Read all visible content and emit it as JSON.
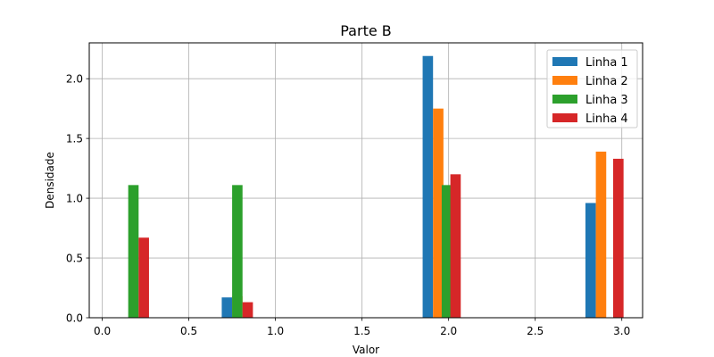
{
  "chart_data": {
    "type": "bar",
    "title": "Parte B",
    "xlabel": "Valor",
    "ylabel": "Densidade",
    "xlim": [
      -0.075,
      3.12
    ],
    "ylim": [
      0,
      2.3
    ],
    "xticks": [
      0.0,
      0.5,
      1.0,
      1.5,
      2.0,
      2.5,
      3.0
    ],
    "xtick_labels": [
      "0.0",
      "0.5",
      "1.0",
      "1.5",
      "2.0",
      "2.5",
      "3.0"
    ],
    "yticks": [
      0.0,
      0.5,
      1.0,
      1.5,
      2.0
    ],
    "ytick_labels": [
      "0.0",
      "0.5",
      "1.0",
      "1.5",
      "2.0"
    ],
    "grid": true,
    "legend_position": "top-right",
    "bin_centers": [
      0.2,
      0.8,
      1.4,
      2.0,
      2.6,
      3.0
    ],
    "series": [
      {
        "name": "Linha 1",
        "color": "#1f77b4",
        "x": [
          0.72,
          1.88,
          2.82
        ],
        "values": [
          0.17,
          2.19,
          0.96
        ]
      },
      {
        "name": "Linha 2",
        "color": "#ff7f0e",
        "x": [
          0.78,
          1.94,
          2.88
        ],
        "values": [
          0.18,
          1.75,
          1.39
        ]
      },
      {
        "name": "Linha 3",
        "color": "#2ca02c",
        "x": [
          0.18,
          0.78,
          1.99
        ],
        "values": [
          1.11,
          1.11,
          1.11
        ]
      },
      {
        "name": "Linha 4",
        "color": "#d62728",
        "x": [
          0.24,
          0.84,
          2.04,
          2.98
        ],
        "values": [
          0.67,
          0.13,
          1.2,
          1.33
        ]
      }
    ],
    "bar_width": 0.06
  }
}
